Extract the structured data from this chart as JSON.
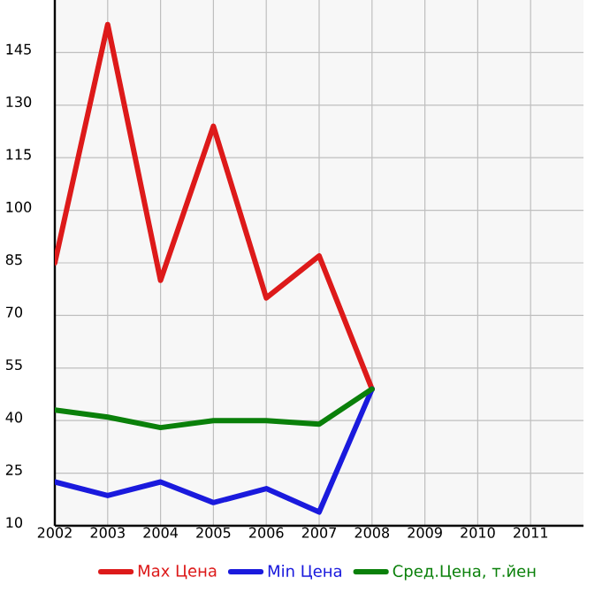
{
  "chart_data": {
    "type": "line",
    "x": [
      2002,
      2003,
      2004,
      2005,
      2006,
      2007,
      2008
    ],
    "series": [
      {
        "name": "Max Цена",
        "color": "#dd1a1a",
        "values": [
          85,
          153,
          80,
          124,
          75,
          87,
          49
        ]
      },
      {
        "name": "Min Цена",
        "color": "#1a1add",
        "values": [
          22.5,
          18.6,
          22.5,
          16.6,
          20.6,
          13.9,
          49
        ]
      },
      {
        "name": "Сред.Цена, т.йен",
        "color": "#0a800a",
        "values": [
          43,
          41,
          38,
          40,
          40,
          39,
          49
        ]
      }
    ],
    "xlim": [
      2002,
      2012
    ],
    "xticks": [
      2002,
      2003,
      2004,
      2005,
      2006,
      2007,
      2008,
      2009,
      2010,
      2011
    ],
    "ylim": [
      10,
      160
    ],
    "yticks": [
      10,
      25,
      40,
      55,
      70,
      85,
      100,
      115,
      130,
      145
    ],
    "grid": true,
    "legend": "bottom",
    "marker": "none",
    "line_style": "solid"
  }
}
